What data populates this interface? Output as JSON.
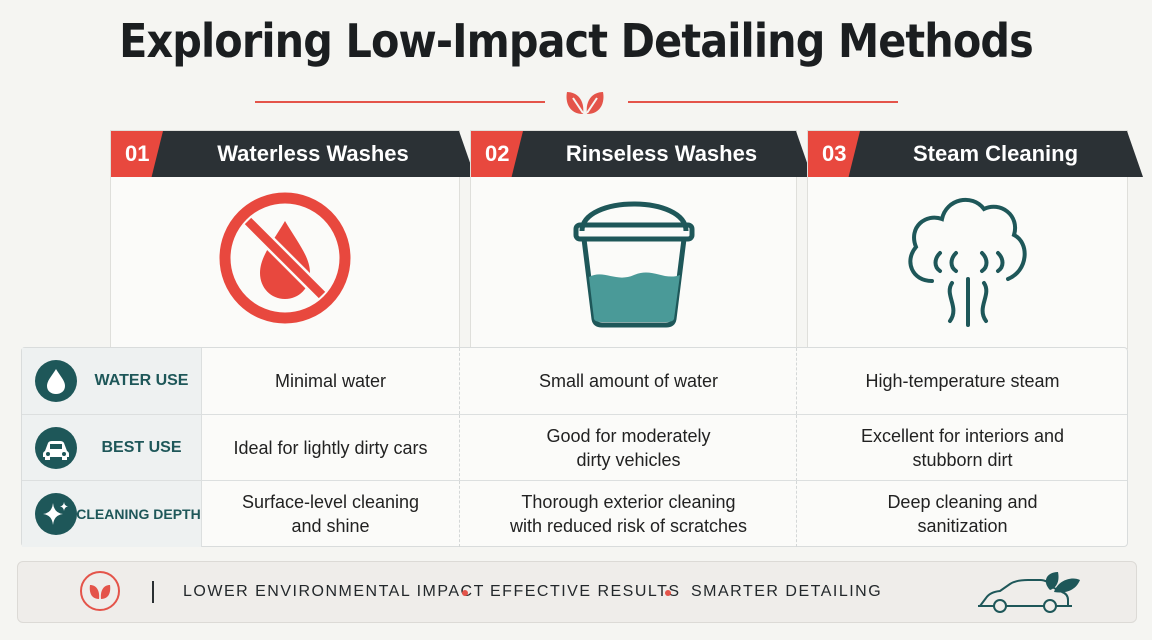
{
  "title": "Exploring Low-Impact Detailing Methods",
  "colors": {
    "accent": "#e8483e",
    "dark": "#2b3135",
    "teal": "#1e5759",
    "water": "#4a9a98"
  },
  "methods": [
    {
      "number": "01",
      "name": "Waterless Washes",
      "icon": "no-water-icon"
    },
    {
      "number": "02",
      "name": "Rinseless Washes",
      "icon": "bucket-icon"
    },
    {
      "number": "03",
      "name": "Steam Cleaning",
      "icon": "steam-cloud-icon"
    }
  ],
  "rows": [
    {
      "label": "WATER USE",
      "icon": "water-drop-icon",
      "cells": [
        [
          "Minimal water"
        ],
        [
          "Small amount of water"
        ],
        [
          "High-temperature steam"
        ]
      ]
    },
    {
      "label": "BEST USE",
      "icon": "car-icon",
      "cells": [
        [
          "Ideal for lightly dirty cars"
        ],
        [
          "Good for moderately",
          "dirty vehicles"
        ],
        [
          "Excellent for interiors and",
          "stubborn dirt"
        ]
      ]
    },
    {
      "label": "CLEANING DEPTH",
      "icon": "sparkle-icon",
      "cells": [
        [
          "Surface-level cleaning",
          "and shine"
        ],
        [
          "Thorough exterior cleaning",
          "with reduced risk of scratches"
        ],
        [
          "Deep cleaning and",
          "sanitization"
        ]
      ]
    }
  ],
  "footer": {
    "items": [
      "LOWER ENVIRONMENTAL IMPACT",
      "EFFECTIVE RESULTS",
      "SMARTER DETAILING"
    ],
    "left_icon": "leaf-icon",
    "right_icon": "eco-car-icon"
  }
}
